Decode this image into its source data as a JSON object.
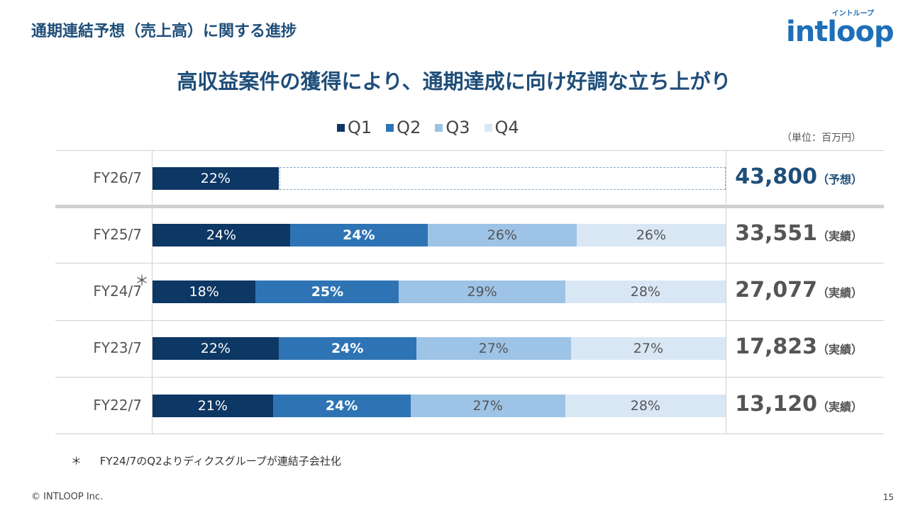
{
  "page_title": "通期連結予想（売上高）に関する進捗",
  "logo": {
    "kana": "イントループ",
    "word": "intloop"
  },
  "headline": "高収益案件の獲得により、通期達成に向け好調な立ち上がり",
  "unit_label": "（単位：百万円）",
  "colors": {
    "Q1": "#0d3764",
    "Q2": "#2e74b5",
    "Q3": "#9dc3e6",
    "Q4": "#d9e7f5"
  },
  "chart_data": {
    "type": "bar",
    "orientation": "horizontal",
    "stacked": true,
    "legend": [
      "Q1",
      "Q2",
      "Q3",
      "Q4"
    ],
    "legend_position": "top",
    "rows": [
      {
        "label": "FY26/7",
        "values": [
          22
        ],
        "labels": [
          "22%"
        ],
        "total": "43,800",
        "total_suffix": "（予想）",
        "forecast": true
      },
      {
        "label": "FY25/7",
        "values": [
          24,
          24,
          26,
          26
        ],
        "labels": [
          "24%",
          "24%",
          "26%",
          "26%"
        ],
        "total": "33,551",
        "total_suffix": "（実績）",
        "forecast": false
      },
      {
        "label": "FY24/7",
        "values": [
          18,
          25,
          29,
          28
        ],
        "labels": [
          "18%",
          "25%",
          "29%",
          "28%"
        ],
        "total": "27,077",
        "total_suffix": "（実績）",
        "forecast": false,
        "note": "＊"
      },
      {
        "label": "FY23/7",
        "values": [
          22,
          24,
          27,
          27
        ],
        "labels": [
          "22%",
          "24%",
          "27%",
          "27%"
        ],
        "total": "17,823",
        "total_suffix": "（実績）",
        "forecast": false
      },
      {
        "label": "FY22/7",
        "values": [
          21,
          24,
          27,
          28
        ],
        "labels": [
          "21%",
          "24%",
          "27%",
          "28%"
        ],
        "total": "13,120",
        "total_suffix": "（実績）",
        "forecast": false
      }
    ],
    "value_range": [
      0,
      100
    ]
  },
  "footnote": {
    "mark": "＊",
    "text": "FY24/7のQ2よりディクスグループが連結子会社化"
  },
  "copyright": "© INTLOOP Inc.",
  "page_number": "15"
}
